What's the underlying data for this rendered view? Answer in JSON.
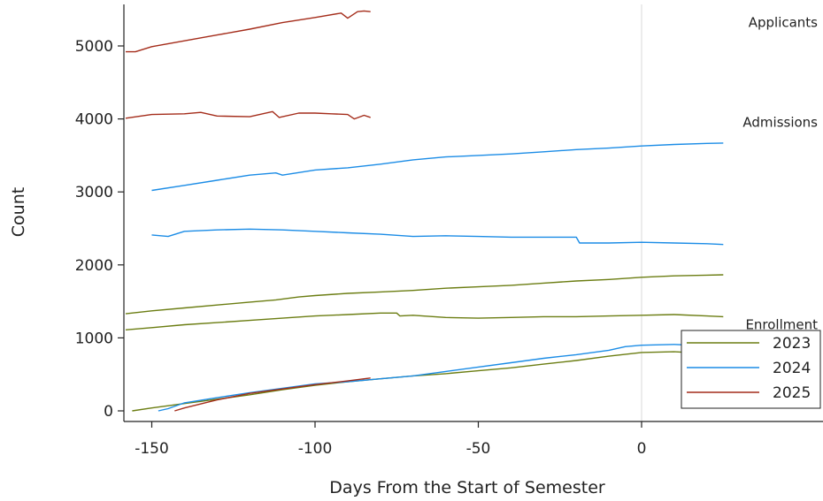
{
  "chart_data": {
    "type": "line",
    "xlabel": "Days From the Start of Semester",
    "ylabel": "Count",
    "xlim": [
      -160,
      44
    ],
    "ylim": [
      -20,
      5550
    ],
    "x_ticks": [
      -150,
      -100,
      -50,
      0
    ],
    "x_tick_labels": [
      "-150",
      "-100",
      "-50",
      "0"
    ],
    "y_ticks": [
      0,
      1000,
      2000,
      3000,
      4000,
      5000
    ],
    "y_tick_labels": [
      "0",
      "1000",
      "2000",
      "3000",
      "4000",
      "5000"
    ],
    "reference_line_x": 0,
    "annotations": [
      {
        "text": "Applicants",
        "x": 42,
        "y": 5320,
        "anchor": "end"
      },
      {
        "text": "Admissions",
        "x": 42,
        "y": 3950,
        "anchor": "end"
      },
      {
        "text": "Enrollment",
        "x": 42,
        "y": 1180,
        "anchor": "end"
      }
    ],
    "legend": {
      "position": "bottom-right",
      "entries": [
        {
          "label": "2023",
          "color": "#6b7d12"
        },
        {
          "label": "2024",
          "color": "#1b8ce6"
        },
        {
          "label": "2025",
          "color": "#a42c1a"
        }
      ]
    },
    "series": [
      {
        "year": "2023",
        "group": "Admissions",
        "color": "#6b7d12",
        "x": [
          -158,
          -150,
          -140,
          -130,
          -120,
          -112,
          -105,
          -100,
          -90,
          -80,
          -70,
          -60,
          -50,
          -40,
          -30,
          -20,
          -10,
          0,
          10,
          20,
          25
        ],
        "y": [
          1330,
          1370,
          1410,
          1450,
          1490,
          1520,
          1560,
          1580,
          1610,
          1630,
          1650,
          1680,
          1700,
          1720,
          1750,
          1780,
          1800,
          1830,
          1850,
          1860,
          1865
        ]
      },
      {
        "year": "2023",
        "group": "Enrollment",
        "color": "#6b7d12",
        "x": [
          -158,
          -150,
          -140,
          -130,
          -120,
          -110,
          -100,
          -90,
          -80,
          -75,
          -74,
          -70,
          -60,
          -50,
          -40,
          -30,
          -20,
          -10,
          0,
          10,
          20,
          25
        ],
        "y": [
          1110,
          1140,
          1180,
          1210,
          1240,
          1270,
          1300,
          1320,
          1340,
          1340,
          1300,
          1310,
          1280,
          1270,
          1280,
          1290,
          1290,
          1300,
          1310,
          1320,
          1300,
          1290
        ]
      },
      {
        "year": "2023",
        "group": "Enrollment",
        "color": "#6b7d12",
        "x": [
          -156,
          -150,
          -140,
          -130,
          -120,
          -110,
          -100,
          -90,
          -80,
          -70,
          -60,
          -50,
          -40,
          -30,
          -20,
          -10,
          0,
          10,
          18,
          20,
          25
        ],
        "y": [
          0,
          40,
          100,
          160,
          220,
          290,
          350,
          400,
          440,
          480,
          510,
          550,
          590,
          640,
          690,
          750,
          800,
          810,
          790,
          780,
          780
        ]
      },
      {
        "year": "2024",
        "group": "Applicants",
        "color": "#1b8ce6",
        "x": [
          -150,
          -140,
          -130,
          -120,
          -112,
          -110,
          -100,
          -90,
          -80,
          -70,
          -60,
          -50,
          -40,
          -30,
          -20,
          -10,
          0,
          10,
          20,
          25
        ],
        "y": [
          3020,
          3090,
          3160,
          3230,
          3260,
          3230,
          3300,
          3330,
          3380,
          3440,
          3480,
          3500,
          3520,
          3550,
          3580,
          3600,
          3630,
          3650,
          3665,
          3670
        ]
      },
      {
        "year": "2024",
        "group": "Admissions",
        "color": "#1b8ce6",
        "x": [
          -150,
          -145,
          -140,
          -130,
          -120,
          -110,
          -100,
          -90,
          -80,
          -70,
          -60,
          -50,
          -40,
          -30,
          -20,
          -19,
          -10,
          0,
          10,
          20,
          25
        ],
        "y": [
          2410,
          2390,
          2460,
          2480,
          2490,
          2480,
          2460,
          2440,
          2420,
          2390,
          2400,
          2390,
          2380,
          2380,
          2380,
          2300,
          2300,
          2310,
          2300,
          2290,
          2280
        ]
      },
      {
        "year": "2024",
        "group": "Enrollment",
        "color": "#1b8ce6",
        "x": [
          -148,
          -145,
          -140,
          -130,
          -120,
          -110,
          -100,
          -90,
          -80,
          -70,
          -60,
          -50,
          -40,
          -30,
          -20,
          -10,
          -5,
          0,
          10,
          20,
          25
        ],
        "y": [
          0,
          30,
          110,
          180,
          250,
          310,
          370,
          400,
          440,
          480,
          540,
          600,
          660,
          720,
          770,
          830,
          880,
          900,
          910,
          890,
          870
        ]
      },
      {
        "year": "2025",
        "group": "Applicants",
        "color": "#a42c1a",
        "x": [
          -158,
          -155,
          -150,
          -140,
          -130,
          -120,
          -110,
          -100,
          -92,
          -90,
          -87,
          -85,
          -83
        ],
        "y": [
          4920,
          4920,
          4990,
          5070,
          5150,
          5230,
          5320,
          5390,
          5450,
          5380,
          5470,
          5480,
          5470
        ]
      },
      {
        "year": "2025",
        "group": "Admissions",
        "color": "#a42c1a",
        "x": [
          -158,
          -150,
          -140,
          -135,
          -130,
          -120,
          -113,
          -111,
          -105,
          -100,
          -95,
          -90,
          -88,
          -85,
          -83
        ],
        "y": [
          4010,
          4060,
          4070,
          4090,
          4040,
          4030,
          4100,
          4020,
          4080,
          4080,
          4070,
          4060,
          4000,
          4050,
          4020
        ]
      },
      {
        "year": "2025",
        "group": "Enrollment",
        "color": "#a42c1a",
        "x": [
          -143,
          -140,
          -130,
          -120,
          -110,
          -100,
          -90,
          -85,
          -83
        ],
        "y": [
          0,
          40,
          150,
          240,
          300,
          360,
          410,
          440,
          450
        ]
      }
    ]
  }
}
